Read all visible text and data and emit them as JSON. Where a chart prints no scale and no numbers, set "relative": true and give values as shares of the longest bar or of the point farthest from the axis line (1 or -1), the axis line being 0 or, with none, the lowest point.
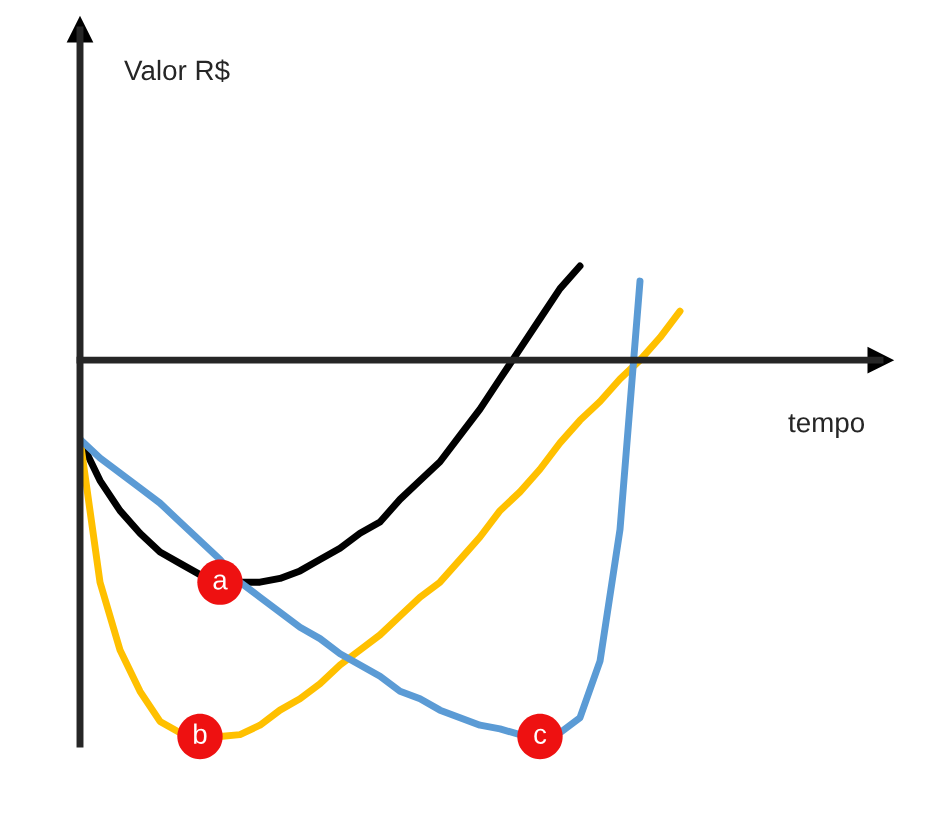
{
  "chart_data": {
    "type": "line",
    "relative": true,
    "xlabel": "tempo",
    "categories": [
      null,
      null,
      null,
      null,
      null,
      null,
      null,
      null,
      null,
      null,
      null,
      null,
      null,
      null,
      null,
      null,
      null,
      null,
      null,
      null,
      null,
      null,
      null,
      null,
      null,
      null,
      null,
      null,
      null,
      null,
      null,
      null,
      null
    ],
    "series": [
      {
        "color": "#000000",
        "values": [
          -0.21,
          -0.32,
          -0.4,
          -0.46,
          -0.51,
          -0.54,
          -0.57,
          -0.59,
          -0.59,
          -0.59,
          -0.58,
          -0.56,
          -0.53,
          -0.5,
          -0.46,
          -0.43,
          -0.37,
          -0.32,
          -0.27,
          -0.2,
          -0.13,
          -0.05,
          0.03,
          0.11,
          0.19,
          0.25,
          null,
          null,
          null,
          null,
          null,
          null,
          null
        ]
      },
      {
        "color": "#ffc000",
        "values": [
          -0.21,
          -0.59,
          -0.77,
          -0.88,
          -0.96,
          -0.99,
          -1.0,
          -1.0,
          -0.995,
          -0.97,
          -0.93,
          -0.9,
          -0.86,
          -0.81,
          -0.77,
          -0.73,
          -0.68,
          -0.63,
          -0.59,
          -0.53,
          -0.47,
          -0.4,
          -0.35,
          -0.29,
          -0.22,
          -0.16,
          -0.11,
          -0.05,
          0.0,
          0.06,
          0.13,
          null,
          null
        ]
      },
      {
        "color": "#5b9bd5",
        "values": [
          -0.21,
          -0.26,
          -0.3,
          -0.34,
          -0.38,
          -0.43,
          -0.48,
          -0.53,
          -0.59,
          -0.63,
          -0.67,
          -0.71,
          -0.74,
          -0.78,
          -0.81,
          -0.84,
          -0.88,
          -0.9,
          -0.93,
          -0.95,
          -0.97,
          -0.98,
          -0.995,
          -1.0,
          -0.99,
          -0.95,
          -0.8,
          -0.45,
          0.21,
          null,
          null,
          null,
          null
        ]
      }
    ],
    "annotations": [
      "Valor R$",
      "a",
      "b",
      "c"
    ]
  }
}
